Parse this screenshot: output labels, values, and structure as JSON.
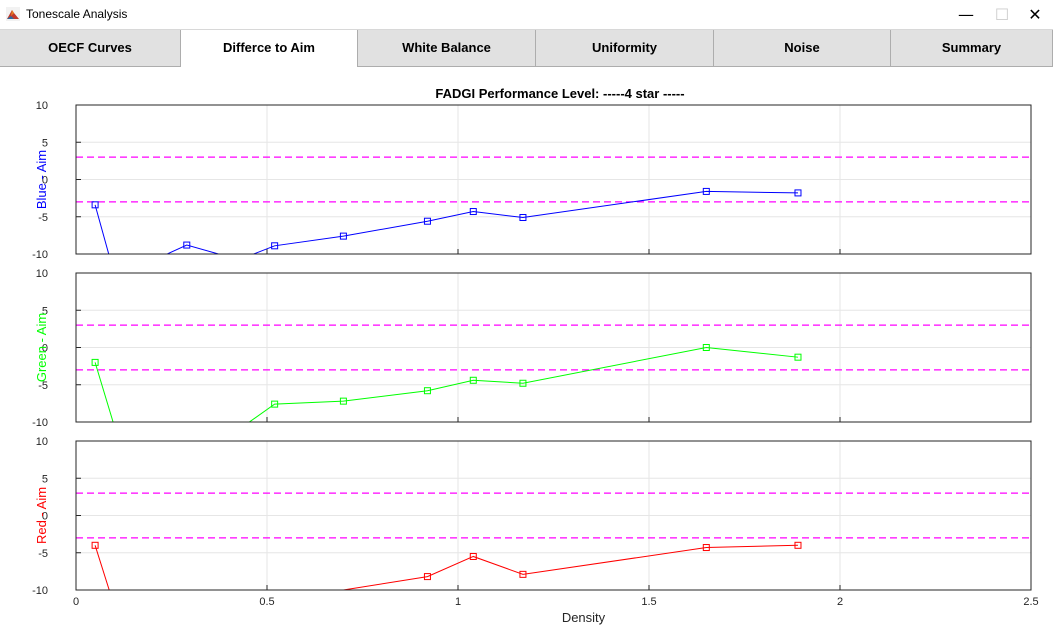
{
  "window": {
    "title": "Tonescale Analysis",
    "controls": {
      "minimize": "—",
      "maximize": "☐",
      "close": "✕"
    }
  },
  "tabs": [
    {
      "label": "OECF Curves",
      "active": false
    },
    {
      "label": "Differce to Aim",
      "active": true
    },
    {
      "label": "White Balance",
      "active": false
    },
    {
      "label": "Uniformity",
      "active": false
    },
    {
      "label": "Noise",
      "active": false
    },
    {
      "label": "Summary",
      "active": false
    }
  ],
  "chart_title": "FADGI Performance Level: -----4 star -----",
  "chart_data": [
    {
      "type": "line",
      "ylabel": "Blue - Aim",
      "color": "#0000ff",
      "ylim": [
        -10,
        10
      ],
      "xlim": [
        0,
        2.5
      ],
      "grid": true,
      "thresholds": [
        3,
        -3
      ],
      "threshold_color": "#ff00ff",
      "x": [
        0.05,
        0.09,
        0.23,
        0.29,
        0.38,
        0.45,
        0.52,
        0.7,
        0.92,
        1.04,
        1.17,
        1.65,
        1.89
      ],
      "y": [
        -3.4,
        -10.8,
        -10.2,
        -8.8,
        -10.1,
        -10.3,
        -8.9,
        -7.6,
        -5.6,
        -4.3,
        -5.1,
        -1.6,
        -1.8
      ],
      "markers": [
        true,
        false,
        false,
        true,
        false,
        false,
        true,
        true,
        true,
        true,
        true,
        true,
        true
      ]
    },
    {
      "type": "line",
      "ylabel": "Green - Aim",
      "color": "#00ff00",
      "ylim": [
        -10,
        10
      ],
      "xlim": [
        0,
        2.5
      ],
      "grid": true,
      "thresholds": [
        3,
        -3
      ],
      "threshold_color": "#ff00ff",
      "x": [
        0.05,
        0.1,
        0.44,
        0.52,
        0.7,
        0.92,
        1.04,
        1.17,
        1.65,
        1.89
      ],
      "y": [
        -2.0,
        -10.5,
        -10.5,
        -7.6,
        -7.2,
        -5.8,
        -4.4,
        -4.8,
        0.0,
        -1.3
      ],
      "markers": [
        true,
        false,
        false,
        true,
        true,
        true,
        true,
        true,
        true,
        true
      ]
    },
    {
      "type": "line",
      "ylabel": "Red - Aim",
      "color": "#ff0000",
      "ylim": [
        -10,
        10
      ],
      "xlim": [
        0,
        2.5
      ],
      "grid": true,
      "thresholds": [
        3,
        -3
      ],
      "threshold_color": "#ff00ff",
      "xlabel": "Density",
      "x": [
        0.05,
        0.09,
        0.7,
        0.92,
        1.04,
        1.17,
        1.65,
        1.89
      ],
      "y": [
        -4.0,
        -10.5,
        -10.0,
        -8.2,
        -5.5,
        -7.9,
        -4.3,
        -4.0
      ],
      "markers": [
        true,
        false,
        false,
        true,
        true,
        true,
        true,
        true
      ]
    }
  ],
  "y_ticks": [
    "10",
    "5",
    "0",
    "-5",
    "-10"
  ],
  "x_ticks": [
    "0",
    "0.5",
    "1",
    "1.5",
    "2",
    "2.5"
  ]
}
